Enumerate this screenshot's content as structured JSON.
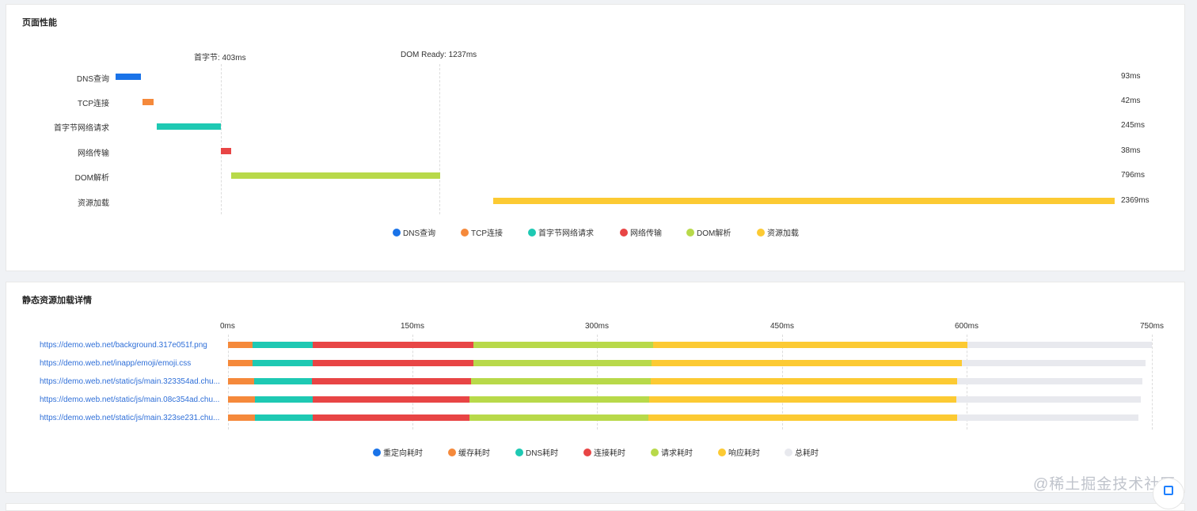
{
  "perf": {
    "title": "页面性能",
    "marker_first_byte": "首字节: 403ms",
    "marker_dom_ready": "DOM Ready: 1237ms",
    "rows": [
      {
        "label": "DNS查询",
        "value": "93ms"
      },
      {
        "label": "TCP连接",
        "value": "42ms"
      },
      {
        "label": "首字节网络请求",
        "value": "245ms"
      },
      {
        "label": "网络传输",
        "value": "38ms"
      },
      {
        "label": "DOM解析",
        "value": "796ms"
      },
      {
        "label": "资源加载",
        "value": "2369ms"
      }
    ],
    "legend": [
      "DNS查询",
      "TCP连接",
      "首字节网络请求",
      "网络传输",
      "DOM解析",
      "资源加载"
    ],
    "colors": [
      "#1a73e8",
      "#f5893b",
      "#1ec9b3",
      "#e84545",
      "#b8d94a",
      "#fcca33"
    ]
  },
  "chart_data": [
    {
      "type": "bar",
      "title": "页面性能",
      "categories": [
        "DNS查询",
        "TCP连接",
        "首字节网络请求",
        "网络传输",
        "DOM解析",
        "资源加载"
      ],
      "series": [
        {
          "values": [
            [
              0,
              93
            ],
            [
              100,
              142
            ],
            [
              158,
              403
            ],
            [
              403,
              441
            ],
            [
              441,
              1237
            ],
            [
              1400,
              3769
            ]
          ]
        }
      ],
      "durations": [
        93,
        42,
        245,
        38,
        796,
        2369
      ],
      "annotations": [
        "首字节: 403ms",
        "DOM Ready: 1237ms"
      ]
    },
    {
      "type": "bar",
      "title": "静态资源加载详情",
      "categories": [
        "https://demo.web.net/background.317e051f.png",
        "https://demo.web.net/inapp/emoji/emoji.css",
        "https://demo.web.net/static/js/main.323354ad.chu...",
        "https://demo.web.net/static/js/main.08c354ad.chu...",
        "https://demo.web.net/static/js/main.323se231.chu..."
      ],
      "x_ticks": [
        "0ms",
        "150ms",
        "300ms",
        "450ms",
        "600ms",
        "750ms"
      ],
      "xlim": [
        0,
        750
      ],
      "series": [
        {
          "name": "重定向耗时",
          "values": [
            0,
            0,
            0,
            0,
            0
          ]
        },
        {
          "name": "缓存耗时",
          "values": [
            20,
            20,
            21,
            22,
            22
          ]
        },
        {
          "name": "DNS耗时",
          "values": [
            49,
            49,
            47,
            47,
            47
          ]
        },
        {
          "name": "连接耗时",
          "values": [
            130,
            130,
            129,
            127,
            127
          ]
        },
        {
          "name": "请求耗时",
          "values": [
            146,
            145,
            146,
            146,
            145
          ]
        },
        {
          "name": "响应耗时",
          "values": [
            255,
            252,
            249,
            249,
            251
          ]
        },
        {
          "name": "总耗时",
          "values": [
            750,
            745,
            742,
            741,
            739
          ]
        }
      ]
    }
  ],
  "res": {
    "title": "静态资源加载详情",
    "ticks": [
      "0ms",
      "150ms",
      "300ms",
      "450ms",
      "600ms",
      "750ms"
    ],
    "rows": [
      {
        "url": "https://demo.web.net/background.317e051f.png"
      },
      {
        "url": "https://demo.web.net/inapp/emoji/emoji.css"
      },
      {
        "url": "https://demo.web.net/static/js/main.323354ad.chu..."
      },
      {
        "url": "https://demo.web.net/static/js/main.08c354ad.chu..."
      },
      {
        "url": "https://demo.web.net/static/js/main.323se231.chu..."
      }
    ],
    "legend": [
      "重定向耗时",
      "缓存耗时",
      "DNS耗时",
      "连接耗时",
      "请求耗时",
      "响应耗时",
      "总耗时"
    ],
    "colors": [
      "#1a73e8",
      "#f5893b",
      "#1ec9b3",
      "#e84545",
      "#b8d94a",
      "#fcca33",
      "#e8e9ee"
    ]
  },
  "watermark": "@稀土掘金技术社区",
  "fab_icon": "feedback-icon"
}
